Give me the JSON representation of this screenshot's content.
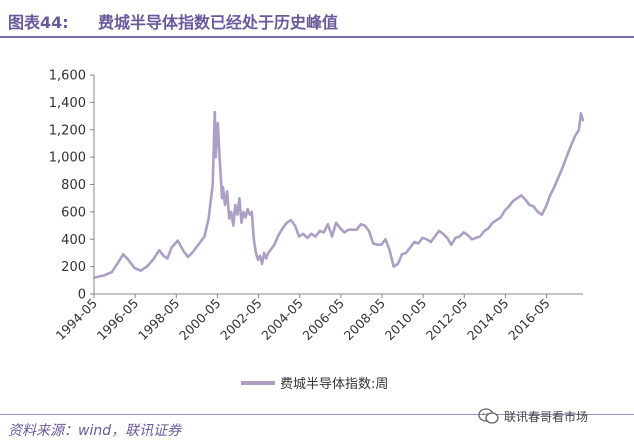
{
  "figure": {
    "number": "图表44:",
    "title": "费城半导体指数已经处于历史峰值"
  },
  "source": "资料来源：wind，联讯证券",
  "watermark": {
    "text": "联讯春哥看市场"
  },
  "colors": {
    "series": "#ad9fc4",
    "heading": "#6a5a9c",
    "axis": "#888888"
  },
  "chart_data": {
    "type": "line",
    "xlabel": "",
    "ylabel": "",
    "ylim": [
      0,
      1600
    ],
    "yticks": [
      0,
      200,
      400,
      600,
      800,
      1000,
      1200,
      1400,
      1600
    ],
    "ytick_labels": [
      "0",
      "200",
      "400",
      "600",
      "800",
      "1,000",
      "1,200",
      "1,400",
      "1,600"
    ],
    "xlim": [
      1994.33,
      2018.1
    ],
    "xticks": [
      1994.33,
      1996.33,
      1998.33,
      2000.33,
      2002.33,
      2004.33,
      2006.33,
      2008.33,
      2010.33,
      2012.33,
      2014.33,
      2016.33
    ],
    "xtick_labels": [
      "1994-05",
      "1996-05",
      "1998-05",
      "2000-05",
      "2002-05",
      "2004-05",
      "2006-05",
      "2008-05",
      "2010-05",
      "2012-05",
      "2014-05",
      "2016-05"
    ],
    "grid": false,
    "legend_position": "bottom",
    "series": [
      {
        "name": "费城半导体指数:周",
        "x": [
          1994.33,
          1994.8,
          1995.2,
          1995.5,
          1995.75,
          1996.0,
          1996.3,
          1996.6,
          1996.9,
          1997.2,
          1997.5,
          1997.7,
          1997.9,
          1998.1,
          1998.4,
          1998.7,
          1998.9,
          1999.1,
          1999.4,
          1999.7,
          1999.9,
          2000.1,
          2000.2,
          2000.25,
          2000.3,
          2000.35,
          2000.45,
          2000.55,
          2000.6,
          2000.7,
          2000.8,
          2000.9,
          2001.0,
          2001.1,
          2001.2,
          2001.3,
          2001.4,
          2001.5,
          2001.6,
          2001.7,
          2001.8,
          2001.9,
          2002.0,
          2002.1,
          2002.2,
          2002.3,
          2002.4,
          2002.5,
          2002.6,
          2002.7,
          2002.8,
          2002.9,
          2003.1,
          2003.3,
          2003.5,
          2003.7,
          2003.9,
          2004.1,
          2004.3,
          2004.5,
          2004.7,
          2004.9,
          2005.1,
          2005.3,
          2005.5,
          2005.7,
          2005.9,
          2006.1,
          2006.3,
          2006.5,
          2006.7,
          2006.9,
          2007.1,
          2007.3,
          2007.5,
          2007.7,
          2007.9,
          2008.1,
          2008.3,
          2008.5,
          2008.7,
          2008.9,
          2009.1,
          2009.3,
          2009.5,
          2009.7,
          2009.9,
          2010.1,
          2010.3,
          2010.5,
          2010.7,
          2010.9,
          2011.1,
          2011.3,
          2011.5,
          2011.7,
          2011.9,
          2012.1,
          2012.3,
          2012.5,
          2012.7,
          2012.9,
          2013.1,
          2013.3,
          2013.5,
          2013.7,
          2013.9,
          2014.1,
          2014.3,
          2014.5,
          2014.7,
          2014.9,
          2015.1,
          2015.3,
          2015.5,
          2015.7,
          2015.9,
          2016.1,
          2016.3,
          2016.5,
          2016.7,
          2016.9,
          2017.1,
          2017.3,
          2017.5,
          2017.7,
          2017.9,
          2018.0,
          2018.1
        ],
        "values": [
          120,
          135,
          160,
          230,
          290,
          250,
          190,
          170,
          200,
          250,
          320,
          280,
          260,
          340,
          390,
          310,
          270,
          300,
          360,
          420,
          550,
          800,
          1330,
          1000,
          1150,
          1250,
          960,
          700,
          780,
          650,
          750,
          550,
          600,
          500,
          650,
          580,
          700,
          520,
          600,
          560,
          620,
          580,
          600,
          400,
          300,
          250,
          280,
          220,
          300,
          260,
          300,
          320,
          360,
          430,
          480,
          520,
          540,
          500,
          420,
          440,
          410,
          440,
          420,
          460,
          450,
          510,
          420,
          520,
          480,
          450,
          470,
          470,
          470,
          510,
          500,
          460,
          370,
          360,
          360,
          400,
          320,
          200,
          220,
          290,
          300,
          340,
          380,
          370,
          410,
          400,
          380,
          420,
          460,
          440,
          410,
          360,
          410,
          420,
          450,
          430,
          400,
          410,
          420,
          460,
          480,
          520,
          540,
          560,
          610,
          640,
          680,
          700,
          720,
          690,
          650,
          640,
          600,
          580,
          640,
          720,
          780,
          850,
          920,
          1000,
          1080,
          1150,
          1200,
          1320,
          1270
        ]
      }
    ]
  }
}
